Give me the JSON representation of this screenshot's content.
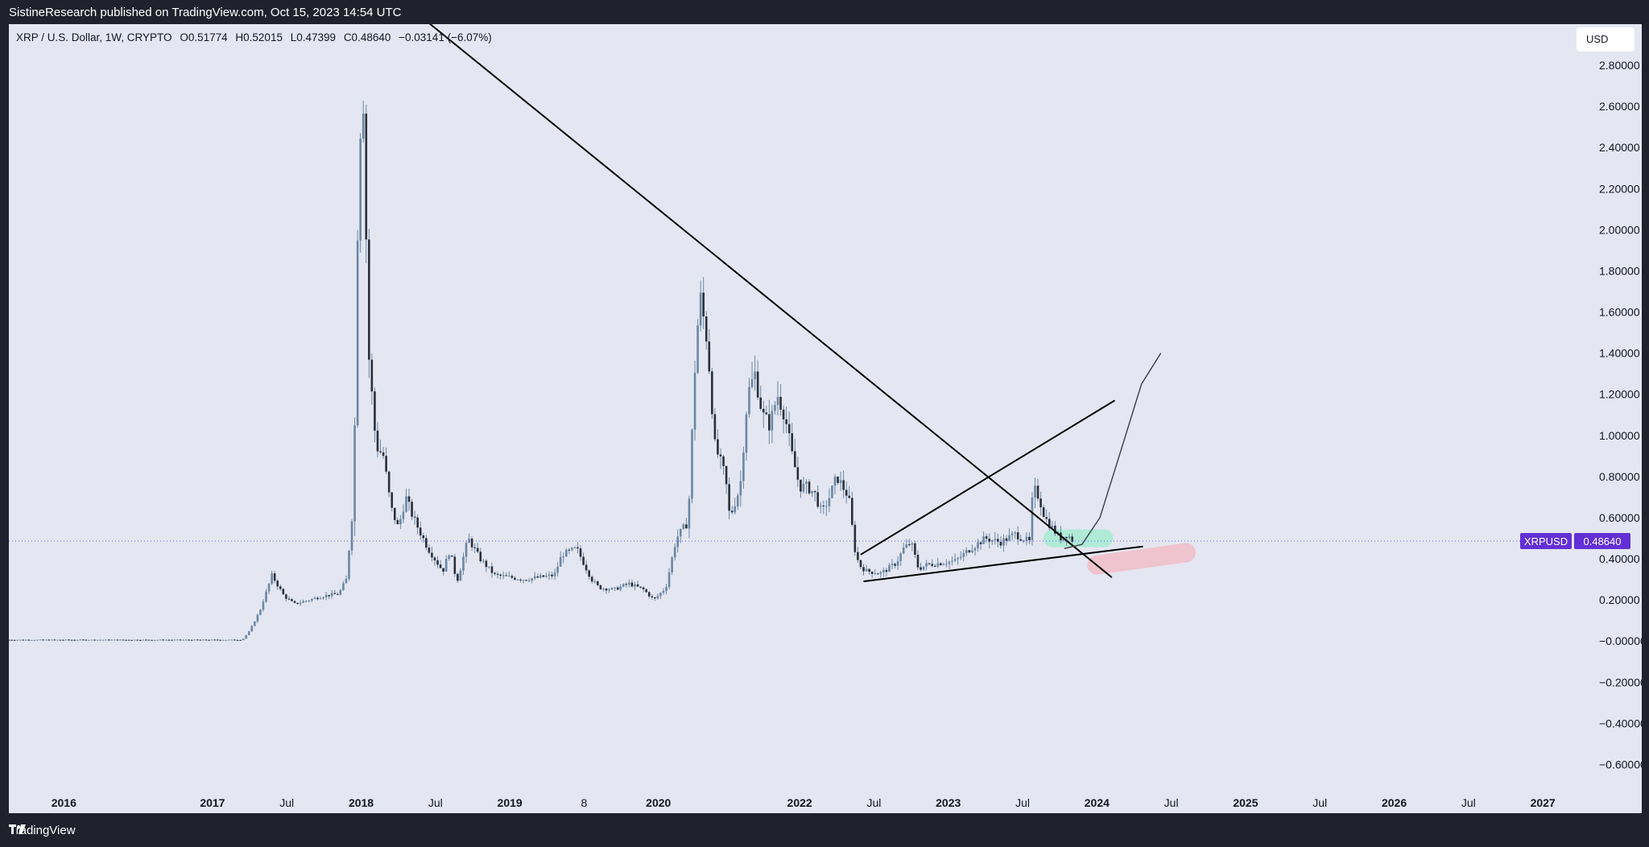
{
  "publish_info": "SistineResearch published on TradingView.com, Oct 15, 2023 14:54 UTC",
  "brand": {
    "name": "TradingView",
    "logo_icon": "tradingview-logo-icon"
  },
  "colors": {
    "frame": "#1f222d",
    "plot_bg": "#e4e7f1",
    "candle_body": "#2b2f39",
    "candle_wick": "#6c87a3",
    "trendline": "#000000",
    "price_badge": "#6230d6",
    "price_line": "#6b63d9",
    "green_zone": "#a7ecd3",
    "red_zone": "#f2bfc8"
  },
  "chart_data": {
    "type": "candlestick",
    "symbol": "XRP / U.S. Dollar, 1W, CRYPTO",
    "ohlc": {
      "open": "O0.51774",
      "high": "H0.52015",
      "low": "L0.47399",
      "close": "C0.48640",
      "change": "−0.03141 (−6.07%)"
    },
    "currency": "USD",
    "last_price": {
      "label": "XRPUSD",
      "value": "0.48640",
      "price": 0.4864
    },
    "y_ticks": [
      "2.80000",
      "2.60000",
      "2.40000",
      "2.20000",
      "2.00000",
      "1.80000",
      "1.60000",
      "1.40000",
      "1.20000",
      "1.00000",
      "0.80000",
      "0.60000",
      "0.40000",
      "0.20000",
      "−0.00000",
      "−0.20000",
      "−0.40000",
      "−0.60000"
    ],
    "y_tick_values": [
      2.8,
      2.6,
      2.4,
      2.2,
      2.0,
      1.8,
      1.6,
      1.4,
      1.2,
      1.0,
      0.8,
      0.6,
      0.4,
      0.2,
      0.0,
      -0.2,
      -0.4,
      -0.6
    ],
    "ylim": [
      -0.7,
      3.0
    ],
    "x_ticks": [
      {
        "label": "2016",
        "t": 2016.0
      },
      {
        "label": "2017",
        "t": 2017.0
      },
      {
        "label": "Jul",
        "t": 2017.5
      },
      {
        "label": "2018",
        "t": 2018.0
      },
      {
        "label": "Jul",
        "t": 2018.5
      },
      {
        "label": "2019",
        "t": 2019.0
      },
      {
        "label": "8",
        "t": 2019.5
      },
      {
        "label": "2020",
        "t": 2020.0
      },
      {
        "label": "2022",
        "t": 2020.95
      },
      {
        "label": "Jul",
        "t": 2021.45
      },
      {
        "label": "2023",
        "t": 2021.95
      },
      {
        "label": "Jul",
        "t": 2022.45
      },
      {
        "label": "2024",
        "t": 2022.95
      },
      {
        "label": "Jul",
        "t": 2023.45
      },
      {
        "label": "2025",
        "t": 2023.95
      },
      {
        "label": "Jul",
        "t": 2024.45
      },
      {
        "label": "2026",
        "t": 2024.95
      },
      {
        "label": "Jul",
        "t": 2025.45
      },
      {
        "label": "2027",
        "t": 2025.95
      }
    ],
    "xlim": [
      2015.63,
      2026.22
    ],
    "price_path": [
      [
        2015.63,
        0.006
      ],
      [
        2016.5,
        0.006
      ],
      [
        2017.2,
        0.006
      ],
      [
        2017.25,
        0.05
      ],
      [
        2017.32,
        0.15
      ],
      [
        2017.4,
        0.32
      ],
      [
        2017.48,
        0.22
      ],
      [
        2017.55,
        0.18
      ],
      [
        2017.65,
        0.2
      ],
      [
        2017.75,
        0.22
      ],
      [
        2017.85,
        0.23
      ],
      [
        2017.9,
        0.3
      ],
      [
        2017.95,
        0.7
      ],
      [
        2017.98,
        2.2
      ],
      [
        2018.01,
        2.8
      ],
      [
        2018.05,
        1.4
      ],
      [
        2018.1,
        0.95
      ],
      [
        2018.15,
        0.9
      ],
      [
        2018.2,
        0.65
      ],
      [
        2018.25,
        0.55
      ],
      [
        2018.3,
        0.7
      ],
      [
        2018.35,
        0.6
      ],
      [
        2018.45,
        0.45
      ],
      [
        2018.55,
        0.34
      ],
      [
        2018.6,
        0.45
      ],
      [
        2018.62,
        0.35
      ],
      [
        2018.65,
        0.3
      ],
      [
        2018.72,
        0.5
      ],
      [
        2018.8,
        0.4
      ],
      [
        2018.9,
        0.32
      ],
      [
        2019.0,
        0.31
      ],
      [
        2019.1,
        0.3
      ],
      [
        2019.2,
        0.31
      ],
      [
        2019.3,
        0.32
      ],
      [
        2019.35,
        0.42
      ],
      [
        2019.45,
        0.45
      ],
      [
        2019.55,
        0.3
      ],
      [
        2019.6,
        0.26
      ],
      [
        2019.7,
        0.25
      ],
      [
        2019.8,
        0.28
      ],
      [
        2019.9,
        0.25
      ],
      [
        2019.97,
        0.2
      ],
      [
        2020.05,
        0.26
      ],
      [
        2020.12,
        0.5
      ],
      [
        2020.2,
        0.58
      ],
      [
        2020.25,
        1.4
      ],
      [
        2020.28,
        1.68
      ],
      [
        2020.33,
        1.45
      ],
      [
        2020.38,
        0.95
      ],
      [
        2020.45,
        0.8
      ],
      [
        2020.48,
        0.6
      ],
      [
        2020.55,
        0.75
      ],
      [
        2020.6,
        1.2
      ],
      [
        2020.65,
        1.3
      ],
      [
        2020.7,
        1.1
      ],
      [
        2020.75,
        1.05
      ],
      [
        2020.8,
        1.2
      ],
      [
        2020.85,
        1.1
      ],
      [
        2020.9,
        0.9
      ],
      [
        2020.95,
        0.75
      ],
      [
        2021.0,
        0.75
      ],
      [
        2021.05,
        0.72
      ],
      [
        2021.1,
        0.62
      ],
      [
        2021.15,
        0.7
      ],
      [
        2021.2,
        0.8
      ],
      [
        2021.28,
        0.7
      ],
      [
        2021.32,
        0.45
      ],
      [
        2021.35,
        0.37
      ],
      [
        2021.4,
        0.34
      ],
      [
        2021.5,
        0.33
      ],
      [
        2021.6,
        0.38
      ],
      [
        2021.65,
        0.45
      ],
      [
        2021.7,
        0.48
      ],
      [
        2021.75,
        0.35
      ],
      [
        2021.8,
        0.37
      ],
      [
        2021.9,
        0.38
      ],
      [
        2022.0,
        0.39
      ],
      [
        2022.1,
        0.45
      ],
      [
        2022.2,
        0.5
      ],
      [
        2022.3,
        0.48
      ],
      [
        2022.4,
        0.52
      ],
      [
        2022.5,
        0.48
      ],
      [
        2022.52,
        0.75
      ],
      [
        2022.56,
        0.7
      ],
      [
        2022.6,
        0.6
      ],
      [
        2022.65,
        0.55
      ],
      [
        2022.7,
        0.5
      ],
      [
        2022.75,
        0.52
      ],
      [
        2022.79,
        0.4864
      ]
    ],
    "trendlines": [
      {
        "name": "descending-resistance",
        "points": [
          [
            2018.38,
            3.05
          ],
          [
            2023.05,
            0.31
          ]
        ]
      },
      {
        "name": "ascending-support",
        "points": [
          [
            2021.38,
            0.29
          ],
          [
            2023.26,
            0.46
          ]
        ]
      },
      {
        "name": "ascending-channel-top",
        "points": [
          [
            2021.36,
            0.42
          ],
          [
            2023.07,
            1.17
          ]
        ]
      }
    ],
    "projection": [
      [
        2022.73,
        0.45
      ],
      [
        2022.85,
        0.47
      ],
      [
        2022.97,
        0.6
      ],
      [
        2023.1,
        0.9
      ],
      [
        2023.25,
        1.25
      ],
      [
        2023.38,
        1.4
      ]
    ],
    "zones": [
      {
        "name": "green-zone",
        "from": [
          2022.65,
          0.5
        ],
        "to": [
          2023.0,
          0.5
        ]
      },
      {
        "name": "red-zone",
        "from": [
          2022.95,
          0.37
        ],
        "to": [
          2023.55,
          0.43
        ]
      }
    ]
  }
}
